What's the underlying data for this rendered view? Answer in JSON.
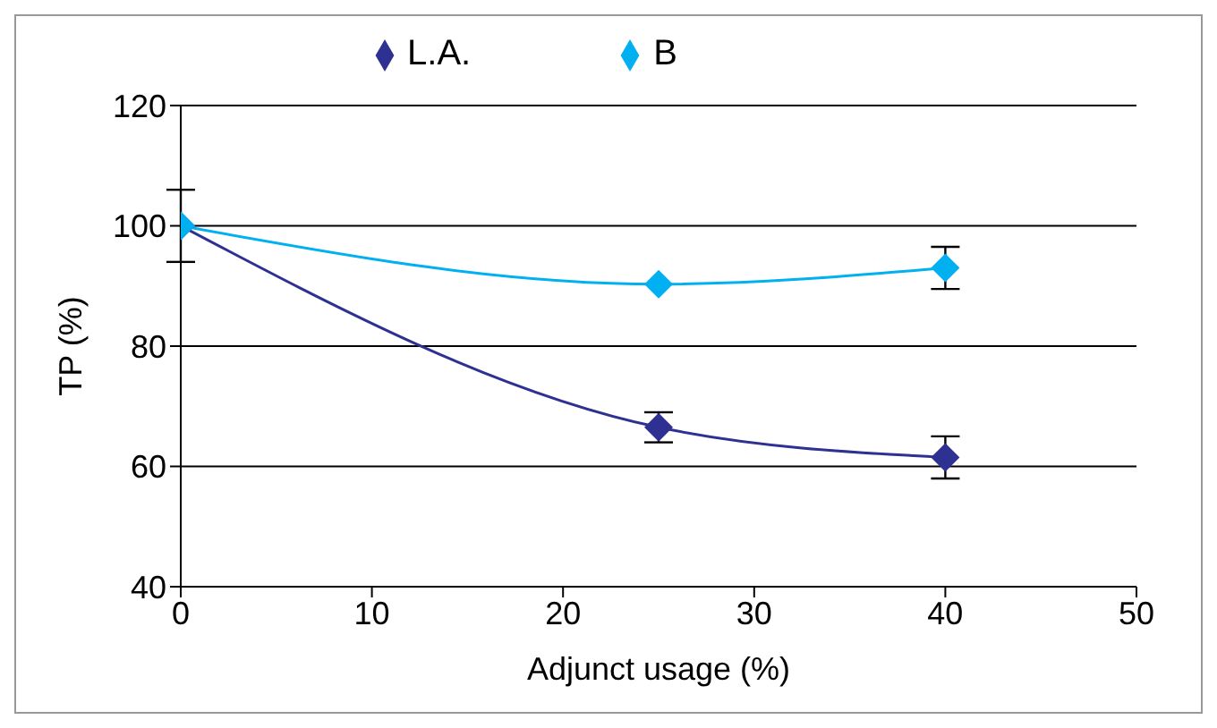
{
  "chart_data": {
    "type": "line",
    "xlabel": "Adjunct usage (%)",
    "ylabel": "TP (%)",
    "x": [
      0,
      25,
      40
    ],
    "series": [
      {
        "name": "L.A.",
        "color": "#2e3192",
        "values": [
          100,
          66.5,
          61.5
        ],
        "errors": [
          6,
          2.5,
          3.5
        ]
      },
      {
        "name": "B",
        "color": "#00b0f0",
        "values": [
          100,
          90.3,
          93
        ],
        "errors": [
          null,
          null,
          3.5
        ]
      }
    ],
    "xlim": [
      0,
      50
    ],
    "xticks": [
      0,
      10,
      20,
      30,
      40,
      50
    ],
    "ylim": [
      40,
      120
    ],
    "yticks": [
      40,
      60,
      80,
      100,
      120
    ],
    "grid": "y",
    "legend": "top",
    "marker": "diamond",
    "line_style": "solid"
  }
}
